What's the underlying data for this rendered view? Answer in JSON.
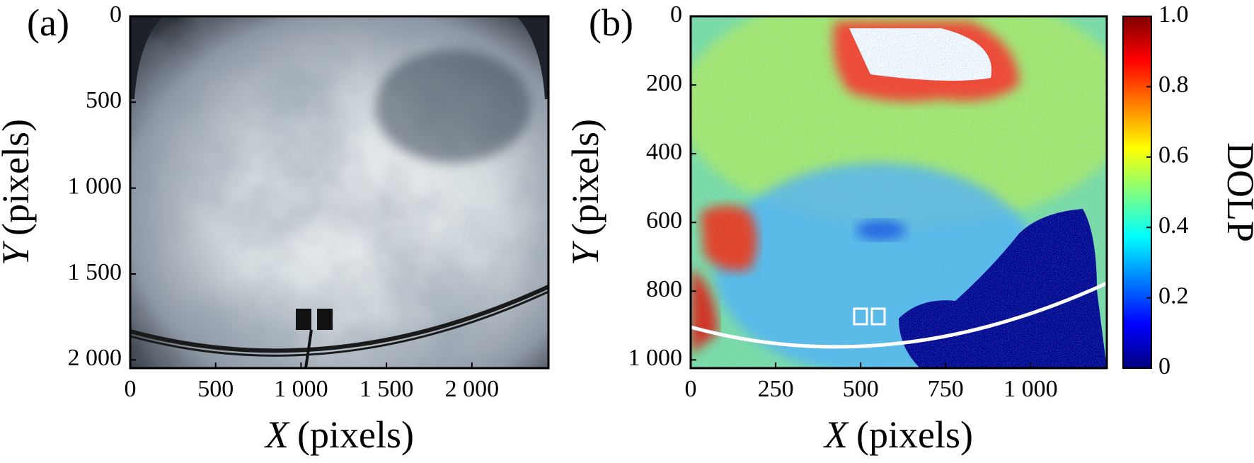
{
  "chart_data": [
    {
      "type": "image",
      "panel_label": "(a)",
      "x_label_var": "X",
      "x_label_unit": "(pixels)",
      "y_label_var": "Y",
      "y_label_unit": "(pixels)",
      "xlim": [
        0,
        2448
      ],
      "ylim": [
        0,
        2048
      ],
      "xticks": [
        0,
        500,
        {
          "value": 1000,
          "label": "1 000"
        },
        {
          "value": 1500,
          "label": "1 500"
        },
        {
          "value": 2000,
          "label": "2 000"
        }
      ],
      "yticks": [
        0,
        500,
        {
          "value": 1000,
          "label": "1 000"
        },
        {
          "value": 1500,
          "label": "1 500"
        },
        {
          "value": 2000,
          "label": "2 000"
        }
      ]
    },
    {
      "type": "heatmap",
      "panel_label": "(b)",
      "x_label_var": "X",
      "x_label_unit": "(pixels)",
      "y_label_var": "Y",
      "y_label_unit": "(pixels)",
      "xlim": [
        0,
        1224
      ],
      "ylim": [
        0,
        1024
      ],
      "xticks": [
        0,
        250,
        500,
        750,
        {
          "value": 1000,
          "label": "1 000"
        }
      ],
      "yticks": [
        0,
        200,
        400,
        600,
        800,
        {
          "value": 1000,
          "label": "1 000"
        }
      ],
      "colorbar": {
        "label": "DOLP",
        "colormap": "jet",
        "lim": [
          0,
          1
        ],
        "ticks": [
          0,
          0.2,
          0.4,
          0.6,
          0.8,
          {
            "value": 1,
            "label": "1.0"
          }
        ]
      }
    }
  ]
}
